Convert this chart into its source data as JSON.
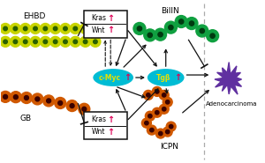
{
  "bg_color": "#ffffff",
  "ehbd_label": "EHBD",
  "gb_label": "GB",
  "bilin_label": "BilIN",
  "icpn_label": "ICPN",
  "adenocarcinoma_label": "Adenocarcinoma",
  "cmyc_label": "c-Myc",
  "tgfb_label": "Tgβ",
  "kras_label": "Kras",
  "wnt_label": "Wnt",
  "up_arrow": "↑",
  "yellow_cell_color": "#c8d400",
  "yellow_dot_color": "#2a6000",
  "orange_cell_color": "#d05800",
  "orange_dot_color": "#3a0000",
  "green_cell_color": "#10a040",
  "green_dot_color": "#003a10",
  "purple_cell_color": "#6030a0",
  "cyan_ellipse_color": "#00bcd4",
  "arrow_color": "#111111",
  "up_arrow_color": "#dd0055",
  "box_border_color": "#111111",
  "dashed_line_color": "#aaaaaa",
  "cmyc_text_color": "#e8e000",
  "tgfb_text_color": "#e8e000"
}
